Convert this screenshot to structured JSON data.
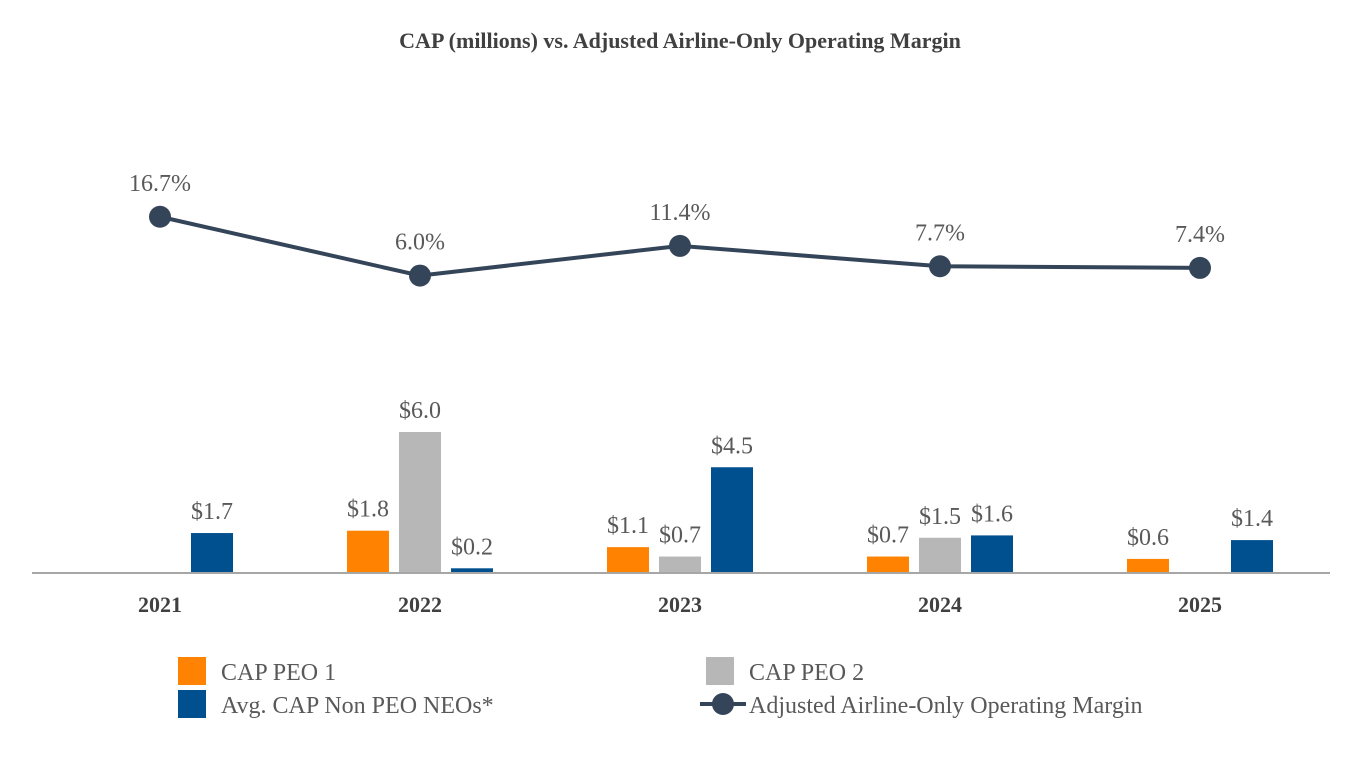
{
  "chart_data": {
    "type": "bar",
    "title": "CAP (millions) vs. Adjusted Airline-Only Operating Margin",
    "categories": [
      "2021",
      "2022",
      "2023",
      "2024",
      "2025"
    ],
    "series": [
      {
        "name": "CAP PEO 1",
        "type": "bar",
        "color": "#FF8200",
        "values": [
          null,
          1.8,
          1.1,
          0.7,
          0.6
        ],
        "labels": [
          "",
          "$1.8",
          "$1.1",
          "$0.7",
          "$0.6"
        ]
      },
      {
        "name": "CAP PEO 2",
        "type": "bar",
        "color": "#B7B7B7",
        "values": [
          null,
          6.0,
          0.7,
          1.5,
          null
        ],
        "labels": [
          "",
          "$6.0",
          "$0.7",
          "$1.5",
          ""
        ]
      },
      {
        "name": "Avg. CAP Non PEO NEOs*",
        "type": "bar",
        "color": "#00508F",
        "values": [
          1.7,
          0.2,
          4.5,
          1.6,
          1.4
        ],
        "labels": [
          "$1.7",
          "$0.2",
          "$4.5",
          "$1.6",
          "$1.4"
        ]
      },
      {
        "name": "Adjusted Airline-Only Operating Margin",
        "type": "line",
        "color": "#354559",
        "values": [
          16.7,
          6.0,
          11.4,
          7.7,
          7.4
        ],
        "labels": [
          "16.7%",
          "6.0%",
          "11.4%",
          "7.7%",
          "7.4%"
        ]
      }
    ],
    "legend_position": "bottom",
    "grid": false
  }
}
